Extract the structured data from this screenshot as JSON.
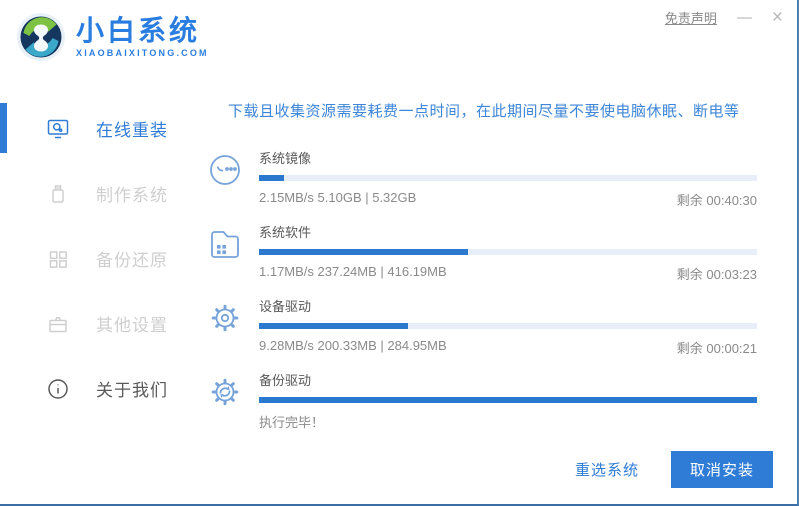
{
  "window": {
    "disclaimer": "免责声明",
    "minimize": "—",
    "close": "×"
  },
  "brand": {
    "title": "小白系统",
    "subtitle": "XIAOBAIXITONG.COM"
  },
  "sidebar": {
    "items": [
      {
        "label": "在线重装",
        "active": true
      },
      {
        "label": "制作系统",
        "active": false
      },
      {
        "label": "备份还原",
        "active": false
      },
      {
        "label": "其他设置",
        "active": false
      },
      {
        "label": "关于我们",
        "active": false
      }
    ]
  },
  "main": {
    "notice": "下载且收集资源需要耗费一点时间，在此期间尽量不要使电脑休眠、断电等",
    "tasks": [
      {
        "label": "系统镜像",
        "progress_percent": 5,
        "status_left": "2.15MB/s 5.10GB | 5.32GB",
        "status_right": "剩余 00:40:30",
        "icon": "face-icon"
      },
      {
        "label": "系统软件",
        "progress_percent": 42,
        "status_left": "1.17MB/s 237.24MB | 416.19MB",
        "status_right": "剩余 00:03:23",
        "icon": "folder-grid-icon"
      },
      {
        "label": "设备驱动",
        "progress_percent": 30,
        "status_left": "9.28MB/s 200.33MB | 284.95MB",
        "status_right": "剩余 00:00:21",
        "icon": "gear-icon"
      },
      {
        "label": "备份驱动",
        "progress_percent": 100,
        "status_left": "执行完毕！",
        "status_right": "",
        "icon": "gear-sync-icon"
      }
    ]
  },
  "footer": {
    "reselect": "重选系统",
    "cancel": "取消安装"
  },
  "colors": {
    "accent": "#2e7cd6",
    "progress_fill": "#2a79cf",
    "progress_track": "#e7eef8",
    "notice_text": "#3d86d8",
    "inactive_item": "#cfcfcf",
    "status_text": "#8a8a8a",
    "logo_green": "#7dc242",
    "logo_teal": "#3aa8c9",
    "logo_navy": "#14365f"
  }
}
